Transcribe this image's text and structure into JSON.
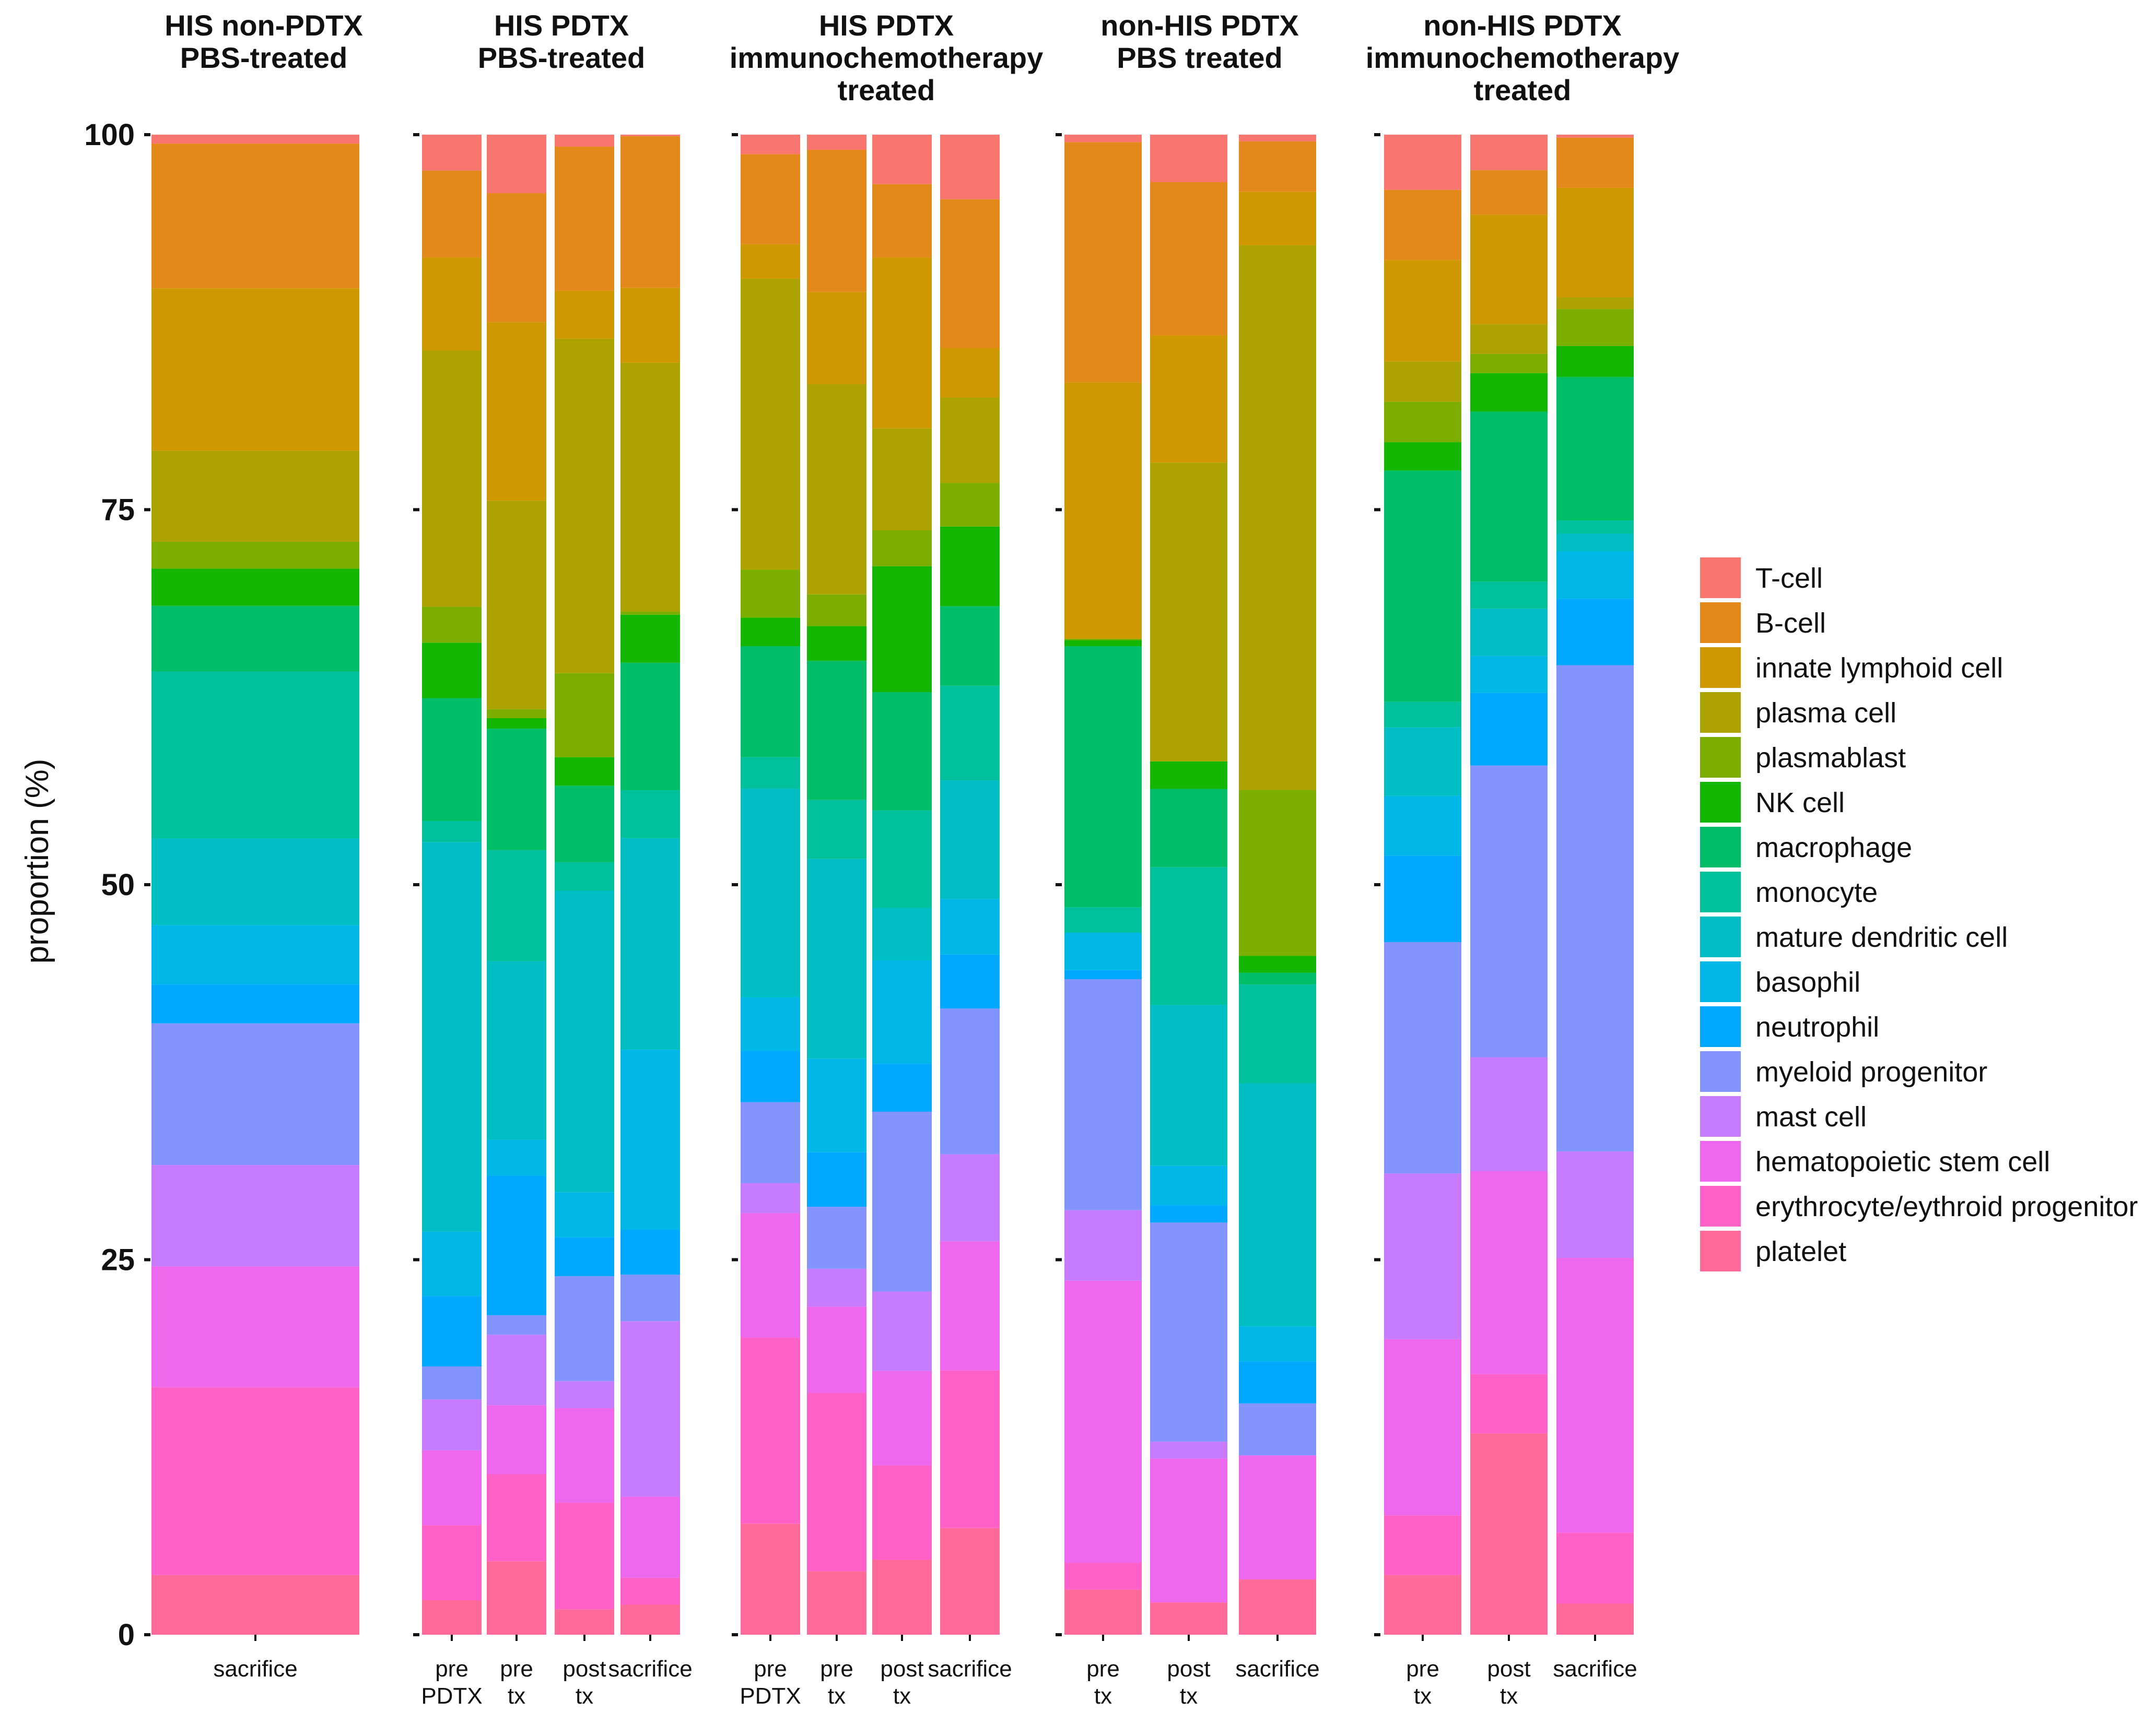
{
  "chart_data": {
    "type": "bar",
    "stacked": true,
    "ylabel": "proportion (%)",
    "ylim": [
      0,
      100
    ],
    "yticks": [
      "0",
      "25",
      "50",
      "75",
      "100"
    ],
    "cell_types": [
      {
        "name": "T-cell",
        "color": "#F8766D"
      },
      {
        "name": "B-cell",
        "color": "#E38919"
      },
      {
        "name": "innate lymphoid cell",
        "color": "#CF9700"
      },
      {
        "name": "plasma cell",
        "color": "#ACA300"
      },
      {
        "name": "plasmablast",
        "color": "#7CAE00"
      },
      {
        "name": "NK cell",
        "color": "#13B600"
      },
      {
        "name": "macrophage",
        "color": "#00BE67"
      },
      {
        "name": "monocyte",
        "color": "#00C19C"
      },
      {
        "name": "mature dendritic cell",
        "color": "#00BFC4"
      },
      {
        "name": "basophil",
        "color": "#00B8E7"
      },
      {
        "name": "neutrophil",
        "color": "#00A9FF"
      },
      {
        "name": "myeloid progenitor",
        "color": "#8494FF"
      },
      {
        "name": "mast cell",
        "color": "#C77CFF"
      },
      {
        "name": "hematopoietic stem cell",
        "color": "#ED68ED"
      },
      {
        "name": "erythrocyte/eythroid progenitor",
        "color": "#FF61C9"
      },
      {
        "name": "platelet",
        "color": "#FF6A98"
      }
    ],
    "panels": [
      {
        "title": [
          "HIS non-PDTX",
          "PBS-treated"
        ],
        "bars": [
          {
            "label": [
              "sacrifice"
            ],
            "values": [
              0.6,
              9.7,
              10.9,
              6.1,
              1.8,
              2.5,
              4.4,
              11.2,
              5.8,
              4.0,
              2.6,
              9.5,
              6.8,
              8.1,
              12.6,
              4.0
            ]
          }
        ]
      },
      {
        "title": [
          "HIS PDTX",
          "PBS-treated"
        ],
        "bars": [
          {
            "label": [
              "pre",
              "PDTX"
            ],
            "values": [
              2.4,
              5.8,
              6.2,
              17.1,
              2.4,
              3.7,
              8.2,
              1.4,
              26.0,
              4.3,
              4.7,
              2.2,
              3.4,
              5.0,
              5.0,
              2.3
            ]
          },
          {
            "label": [
              "pre",
              "tx"
            ],
            "values": [
              3.9,
              8.6,
              11.9,
              13.9,
              0.6,
              0.7,
              8.1,
              7.4,
              11.9,
              2.4,
              9.3,
              1.3,
              4.7,
              4.6,
              5.8,
              4.9
            ]
          },
          {
            "label": [
              "post",
              "tx"
            ],
            "values": [
              0.8,
              9.6,
              3.2,
              22.3,
              5.6,
              1.9,
              5.1,
              1.9,
              20.1,
              3.0,
              2.6,
              7.0,
              1.8,
              6.3,
              7.1,
              1.7
            ]
          },
          {
            "label": [
              "sacrifice"
            ],
            "values": [
              0.1,
              10.1,
              5.0,
              16.6,
              0.2,
              3.2,
              8.5,
              3.2,
              14.1,
              12.0,
              3.0,
              3.1,
              11.7,
              5.4,
              1.8,
              2.0
            ]
          }
        ]
      },
      {
        "title": [
          "HIS PDTX",
          "immunochemotherapy",
          "treated"
        ],
        "bars": [
          {
            "label": [
              "pre",
              "PDTX"
            ],
            "values": [
              1.3,
              6.0,
              2.3,
              19.4,
              3.2,
              1.9,
              7.4,
              2.1,
              13.9,
              3.6,
              3.4,
              5.4,
              2.0,
              8.3,
              12.4,
              7.4
            ]
          },
          {
            "label": [
              "pre",
              "tx"
            ],
            "values": [
              1.0,
              9.4,
              6.1,
              13.9,
              2.1,
              2.3,
              9.2,
              3.9,
              13.2,
              6.2,
              3.6,
              4.1,
              2.5,
              5.7,
              11.8,
              4.2
            ]
          },
          {
            "label": [
              "post",
              "tx"
            ],
            "values": [
              3.3,
              4.9,
              11.4,
              6.8,
              2.4,
              8.4,
              7.9,
              6.5,
              3.5,
              6.9,
              3.2,
              12.0,
              5.3,
              6.3,
              6.3,
              5.0
            ]
          },
          {
            "label": [
              "sacrifice"
            ],
            "values": [
              4.3,
              9.9,
              3.3,
              5.7,
              2.9,
              5.3,
              5.3,
              6.3,
              7.9,
              3.7,
              3.6,
              9.7,
              5.8,
              8.6,
              10.5,
              7.1
            ]
          }
        ]
      },
      {
        "title": [
          "non-HIS PDTX",
          "PBS treated"
        ],
        "bars": [
          {
            "label": [
              "pre",
              "tx"
            ],
            "values": [
              0.5,
              16.0,
              17.1,
              0.0,
              0.1,
              0.4,
              17.4,
              1.7,
              0.0,
              2.5,
              0.6,
              15.4,
              4.7,
              18.8,
              1.8,
              3.0
            ]
          },
          {
            "label": [
              "post",
              "tx"
            ],
            "values": [
              3.1,
              10.0,
              8.3,
              19.5,
              0.0,
              1.8,
              5.1,
              9.0,
              10.5,
              2.6,
              1.1,
              14.3,
              1.1,
              9.4,
              0.0,
              2.1
            ]
          },
          {
            "label": [
              "sacrifice"
            ],
            "values": [
              0.4,
              3.0,
              3.2,
              32.5,
              9.9,
              1.0,
              0.7,
              5.9,
              14.5,
              2.1,
              2.5,
              3.1,
              0.0,
              7.4,
              0.0,
              3.3
            ]
          }
        ]
      },
      {
        "title": [
          "non-HIS PDTX",
          "immunochemotherapy",
          "treated"
        ],
        "bars": [
          {
            "label": [
              "pre",
              "tx"
            ],
            "values": [
              3.7,
              4.7,
              6.8,
              2.7,
              2.7,
              1.9,
              15.5,
              1.7,
              4.6,
              4.0,
              5.8,
              15.5,
              11.1,
              11.8,
              4.0,
              4.0
            ]
          },
          {
            "label": [
              "post",
              "tx"
            ],
            "values": [
              2.4,
              3.0,
              7.4,
              2.0,
              1.3,
              2.6,
              11.5,
              1.8,
              3.2,
              2.5,
              4.9,
              19.7,
              7.7,
              13.7,
              4.0,
              13.6
            ]
          },
          {
            "label": [
              "sacrifice"
            ],
            "values": [
              0.2,
              3.4,
              7.4,
              0.8,
              2.5,
              2.1,
              9.7,
              0.9,
              1.2,
              3.2,
              4.5,
              32.9,
              7.2,
              18.6,
              4.8,
              2.1
            ]
          }
        ]
      }
    ]
  }
}
